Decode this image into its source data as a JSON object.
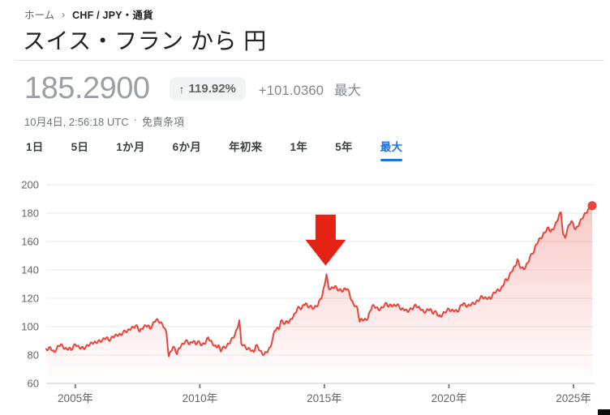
{
  "breadcrumb": {
    "home": "ホーム",
    "separator": "›",
    "current": "CHF / JPY・通貨"
  },
  "header": {
    "title": "スイス・フラン から 円"
  },
  "quote": {
    "price": "185.2900",
    "change_badge": {
      "arrow": "↑",
      "text": "119.92%",
      "bg": "#f1f3f4",
      "color": "#5f6368"
    },
    "change_abs": "+101.0360",
    "change_period": "最大",
    "timestamp": "10月4日, 2:56:18 UTC",
    "dot_separator": "·",
    "disclaimer": "免責条項"
  },
  "range_tabs": {
    "active_color": "#1a73e8",
    "items": [
      {
        "label": "1日",
        "selected": false
      },
      {
        "label": "5日",
        "selected": false
      },
      {
        "label": "1か月",
        "selected": false
      },
      {
        "label": "6か月",
        "selected": false
      },
      {
        "label": "年初来",
        "selected": false
      },
      {
        "label": "1年",
        "selected": false
      },
      {
        "label": "5年",
        "selected": false
      },
      {
        "label": "最大",
        "selected": true
      }
    ]
  },
  "chart_data": {
    "type": "line",
    "series_name": "CHF/JPY",
    "x_start_year": 2003.8333,
    "x_end_year": 2025.75,
    "x_ticks": [
      {
        "year": 2005,
        "label": "2005年"
      },
      {
        "year": 2010,
        "label": "2010年"
      },
      {
        "year": 2015,
        "label": "2015年"
      },
      {
        "year": 2020,
        "label": "2020年"
      },
      {
        "year": 2025,
        "label": "2025年"
      }
    ],
    "y_ticks": [
      60,
      80,
      100,
      120,
      140,
      160,
      180,
      200
    ],
    "y_range": [
      60,
      200
    ],
    "grid": true,
    "values": [
      84.25,
      84,
      85.5,
      83,
      82,
      84.5,
      86.5,
      87.5,
      86,
      84.5,
      84,
      85,
      83.5,
      86,
      87.5,
      86.5,
      85,
      85.5,
      84.5,
      85.5,
      87,
      87.5,
      88.5,
      89,
      88.5,
      90,
      89.5,
      90.5,
      91.5,
      92.5,
      90.5,
      91,
      93,
      93.5,
      94,
      94.5,
      94,
      96,
      97,
      96.5,
      98,
      99,
      99.5,
      100.5,
      100,
      96.5,
      98.5,
      100,
      100.5,
      101,
      98.5,
      100.5,
      103.5,
      105,
      104,
      103,
      101.5,
      99,
      95,
      79,
      82.5,
      85.5,
      84.5,
      80.5,
      85,
      86.5,
      88,
      89.5,
      90,
      87.5,
      89,
      90,
      87.5,
      89.5,
      88.5,
      87,
      88,
      89.5,
      92.5,
      90,
      88.5,
      86.5,
      85.5,
      87,
      82.5,
      85.5,
      85,
      86.5,
      88,
      90.5,
      92,
      95,
      98.5,
      104.5,
      88,
      87,
      85.5,
      84,
      84.5,
      83,
      82,
      87,
      85.5,
      83,
      81,
      80.5,
      82,
      83.5,
      85.5,
      91,
      97,
      99,
      98,
      104,
      103.5,
      102,
      104,
      103,
      105.5,
      107,
      109.5,
      113,
      113.5,
      112.5,
      115.5,
      116.5,
      114,
      114.5,
      113.5,
      113,
      114.5,
      115.5,
      119.5,
      122,
      129,
      137,
      127.5,
      126.5,
      127.5,
      128.5,
      127,
      125.5,
      126,
      125,
      127,
      126.5,
      124,
      118.5,
      116,
      114.5,
      112.5,
      103.5,
      105.5,
      104.5,
      105,
      106,
      111,
      114.5,
      114.5,
      113.5,
      112,
      112.5,
      113.5,
      115.5,
      116.5,
      114,
      115.5,
      114.5,
      115,
      115.5,
      114.5,
      112,
      112.5,
      112,
      110.5,
      112,
      112.5,
      113.5,
      115.5,
      113.5,
      113,
      112,
      110,
      111,
      112,
      112.5,
      109.5,
      110.5,
      110,
      107.5,
      107,
      109,
      110,
      111.5,
      112.5,
      111,
      111.5,
      111.5,
      110.5,
      112.5,
      115.5,
      116.5,
      115,
      114.5,
      115,
      116.5,
      116,
      117.5,
      118,
      120,
      121.5,
      120,
      120,
      120.5,
      119.5,
      122.5,
      124,
      125.5,
      125.5,
      126.5,
      128.5,
      133,
      132.5,
      135.5,
      138.5,
      141,
      142.5,
      147.5,
      143,
      141.5,
      140.5,
      142.5,
      145,
      149,
      151.5,
      153,
      158,
      160,
      162.5,
      163.5,
      166.5,
      168,
      170,
      167,
      168.5,
      171,
      174,
      178.5,
      180.5,
      165,
      162.5,
      168.5,
      172,
      174.5,
      171.5,
      168.5,
      170.5,
      173.5,
      176,
      178.5,
      180,
      182.5,
      183.5,
      185.29
    ],
    "last_value": 185.29,
    "line_color": "#e8453c",
    "fill_color": "#e8453c",
    "fill_top_opacity": 0.33,
    "grid_color": "#e9eaec",
    "axis_color": "#c7c9cc",
    "tick_color": "#7d8287",
    "label_color": "#63676b",
    "end_dot": true,
    "legend_position": "none",
    "annotation": {
      "shape": "arrow-down",
      "x_year": 2015.05,
      "tip_value": 143,
      "color": "#e52213"
    }
  }
}
